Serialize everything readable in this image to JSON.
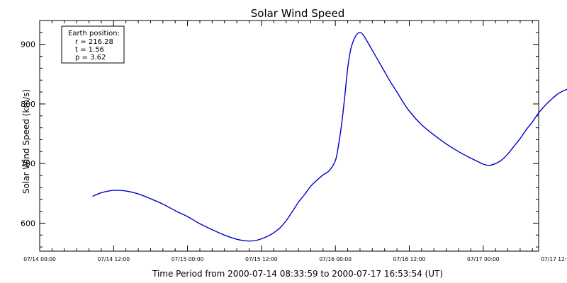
{
  "chart_data": {
    "type": "line",
    "title": "Solar Wind Speed",
    "xlabel": "Time Period from 2000-07-14 08:33:59 to 2000-07-17 16:53:54 (UT)",
    "ylabel": "Solar Wind Speed (km/s)",
    "x_unit": "hours",
    "xlim": [
      0,
      81
    ],
    "ylim": [
      553,
      940
    ],
    "y_ticks": [
      600,
      700,
      800,
      900
    ],
    "x_ticks": [
      {
        "value": 0,
        "label": "07/14 00:00"
      },
      {
        "value": 12,
        "label": "07/14 12:00"
      },
      {
        "value": 24,
        "label": "07/15 00:00"
      },
      {
        "value": 36,
        "label": "07/15 12:00"
      },
      {
        "value": 48,
        "label": "07/16 00:00"
      },
      {
        "value": 60,
        "label": "07/16 12:00"
      },
      {
        "value": 72,
        "label": "07/17 00:00"
      },
      {
        "value": 84,
        "label": "07/17 12:00"
      }
    ],
    "legend": {
      "position": "top-left",
      "lines": [
        "Earth position:",
        "r = 216.28",
        "t = 1.56",
        "p = 3.62"
      ]
    },
    "series": [
      {
        "color": "#0000cc",
        "x": [
          8.57,
          10,
          12,
          14,
          16,
          18,
          20,
          22,
          24,
          26,
          28,
          30,
          32,
          34,
          35.5,
          37,
          38,
          39,
          40,
          41,
          42,
          43,
          44,
          45,
          46,
          47,
          48,
          48.5,
          49,
          49.5,
          50,
          50.5,
          51,
          51.5,
          52,
          52.5,
          53,
          54,
          55,
          56,
          57,
          58,
          59,
          60,
          62,
          64,
          66,
          68,
          70,
          71,
          72,
          73,
          74,
          75,
          76,
          77,
          78,
          79,
          80,
          81,
          82,
          83,
          84,
          85,
          86,
          87,
          88.9
        ],
        "y": [
          645,
          651,
          655,
          654,
          649,
          641,
          632,
          621,
          611,
          599,
          589,
          580,
          573,
          570,
          572,
          578,
          584,
          592,
          604,
          619,
          635,
          648,
          662,
          672,
          681,
          688,
          705,
          730,
          765,
          810,
          860,
          892,
          908,
          917,
          920,
          916,
          908,
          890,
          872,
          854,
          836,
          820,
          803,
          788,
          765,
          748,
          733,
          720,
          709,
          704,
          699,
          697,
          700,
          706,
          716,
          729,
          742,
          757,
          770,
          785,
          797,
          807,
          816,
          822,
          826,
          828,
          829
        ]
      }
    ]
  }
}
